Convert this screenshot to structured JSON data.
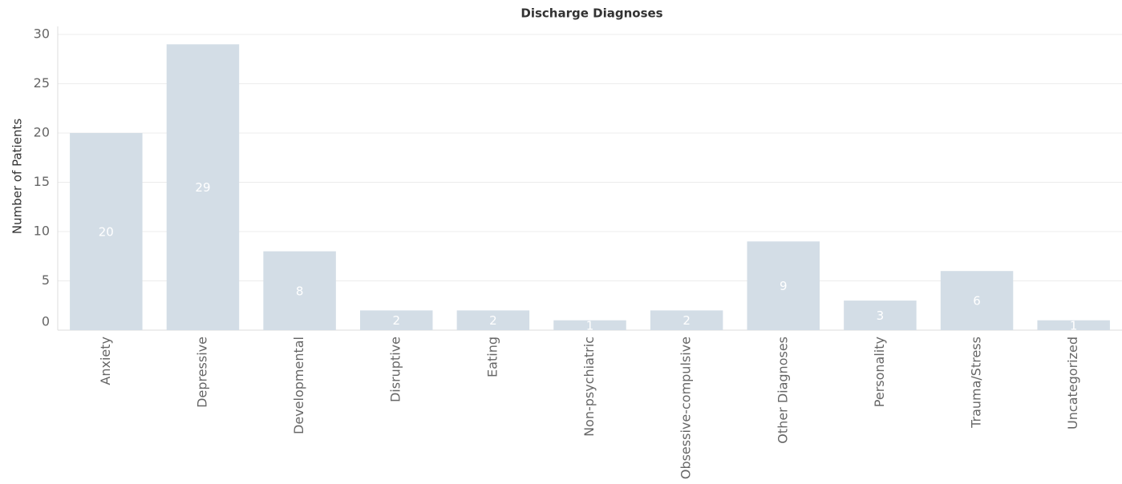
{
  "chart_data": {
    "type": "bar",
    "title": "Discharge Diagnoses",
    "y_label": "Number of Patients",
    "categories": [
      "Anxiety",
      "Depressive",
      "Developmental",
      "Disruptive",
      "Eating",
      "Non-psychiatric",
      "Obsessive-compulsive",
      "Other Diagnoses",
      "Personality",
      "Trauma/Stress",
      "Uncategorized"
    ],
    "values": [
      20,
      29,
      8,
      2,
      2,
      1,
      2,
      9,
      3,
      6,
      1
    ],
    "color": "#d3dde6",
    "ylim": [
      0,
      30
    ],
    "yticks": [
      0,
      5,
      10,
      15,
      20,
      25,
      30
    ],
    "grid": true
  }
}
